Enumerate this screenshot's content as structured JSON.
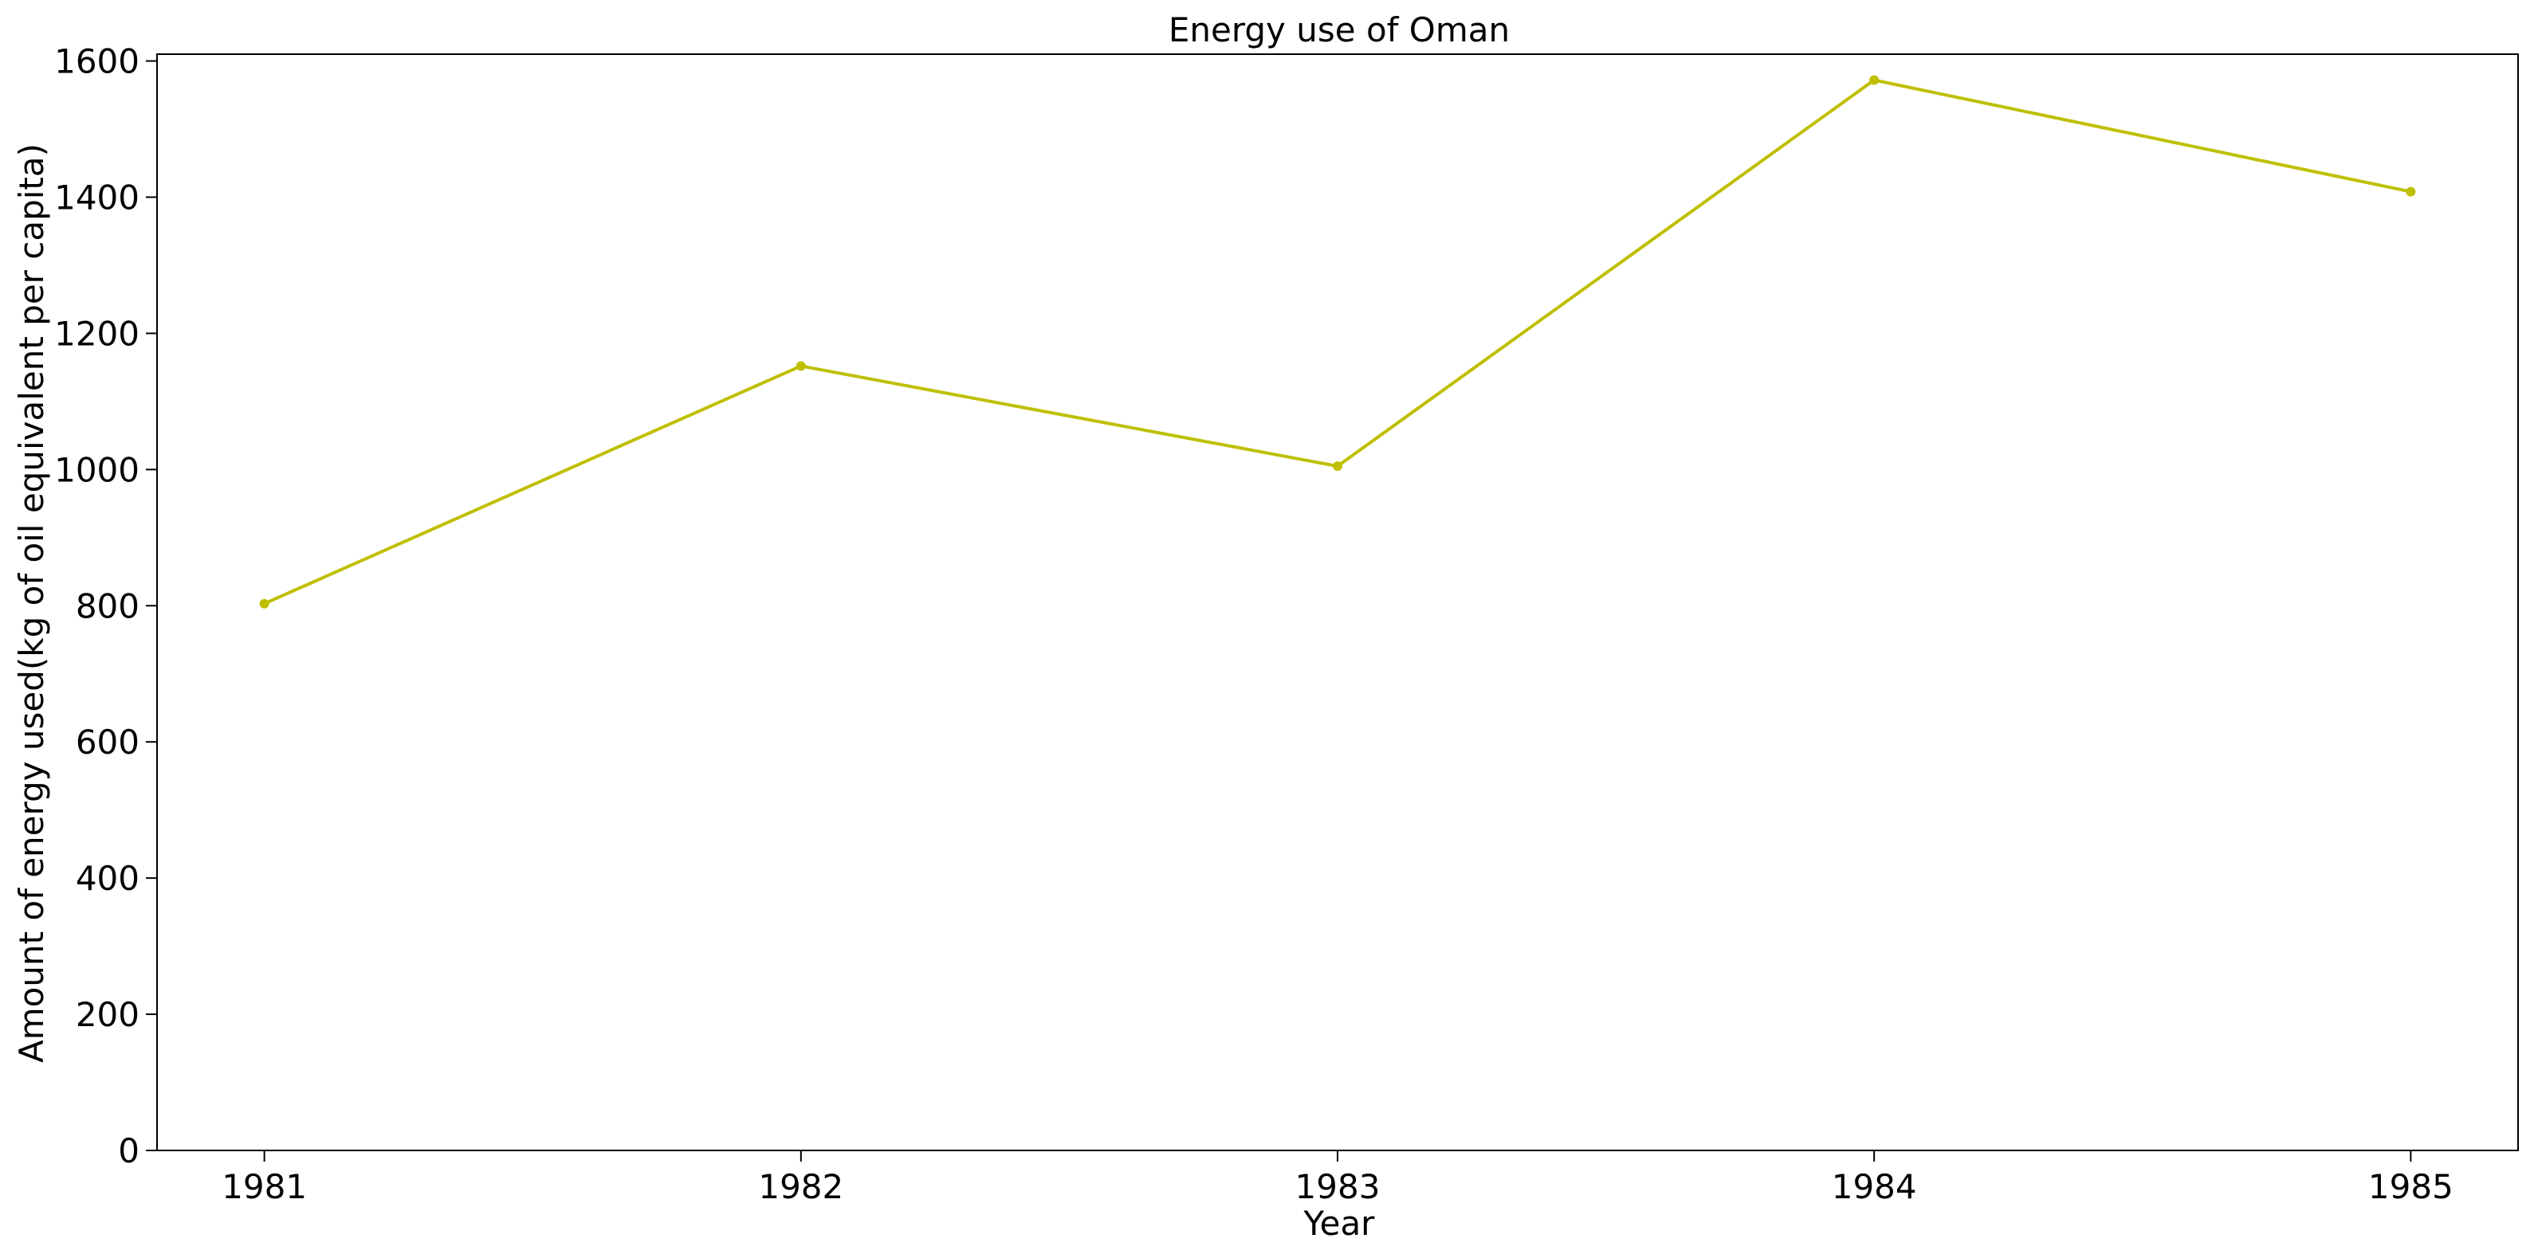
{
  "chart_data": {
    "type": "line",
    "title": "Energy use of Oman",
    "xlabel": "Year",
    "ylabel": "Amount of energy used(kg of oil equivalent per capita)",
    "x": [
      1981,
      1982,
      1983,
      1984,
      1985
    ],
    "x_tick_labels": [
      "1981",
      "1982",
      "1983",
      "1984",
      "1985"
    ],
    "y_ticks": [
      0,
      200,
      400,
      600,
      800,
      1000,
      1200,
      1400,
      1600
    ],
    "y_tick_labels": [
      "0",
      "200",
      "400",
      "600",
      "800",
      "1000",
      "1200",
      "1400",
      "1600"
    ],
    "ylim": [
      0,
      1610
    ],
    "xlim": [
      1980.8,
      1985.2
    ],
    "series": [
      {
        "values": [
          803,
          1152,
          1005,
          1572,
          1408
        ],
        "color": "#bfbf00",
        "marker": "circle"
      }
    ],
    "grid": false,
    "legend": "none"
  }
}
